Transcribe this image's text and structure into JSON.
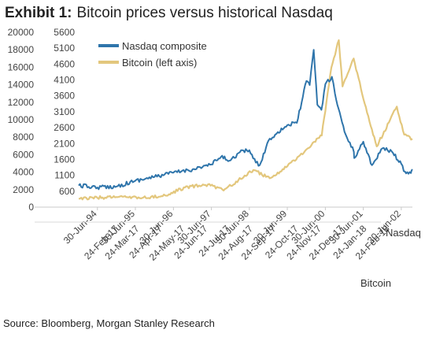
{
  "header": {
    "exhibit_label": "Exhibit 1:",
    "title": "Bitcoin prices versus historical Nasdaq"
  },
  "footer": {
    "source": "Source: Bloomberg, Morgan Stanley Research"
  },
  "chart_data": {
    "type": "line",
    "title": "Bitcoin prices versus historical Nasdaq",
    "grid": false,
    "legend_position": "top-center",
    "left_axis": {
      "ticks": [
        0,
        2000,
        4000,
        6000,
        8000,
        10000,
        12000,
        14000,
        16000,
        18000,
        20000
      ],
      "range": [
        0,
        20000
      ]
    },
    "right_axis": {
      "ticks": [
        600,
        1100,
        1600,
        2100,
        2600,
        3100,
        3600,
        4100,
        4600,
        5100,
        5600
      ],
      "range": [
        100,
        5600
      ]
    },
    "x_nasdaq": {
      "name": "Nasdaq",
      "ticks": [
        "30-Jun-94",
        "30-Jun-95",
        "30-Jun-96",
        "30-Jun-97",
        "30-Jun-98",
        "30-Jun-99",
        "30-Jun-00",
        "30-Jun-01",
        "30-Jun-02"
      ],
      "range": [
        "1994-01-01",
        "2002-10-15"
      ]
    },
    "x_bitcoin": {
      "name": "Bitcoin",
      "ticks": [
        "24-Feb-17",
        "24-Mar-17",
        "24-Apr-17",
        "24-May-17",
        "24-Jun-17",
        "24-Jul-17",
        "24-Aug-17",
        "24-Sep-17",
        "24-Oct-17",
        "24-Nov-17",
        "24-Dec-17",
        "24-Jan-18",
        "24-Feb-18"
      ],
      "range": [
        "2017-01-01",
        "2018-03-26"
      ]
    },
    "series": [
      {
        "name": "Nasdaq composite",
        "axis": "right",
        "color": "#2f75ab",
        "x": [
          "1994-01-01",
          "1994-06-30",
          "1994-12-31",
          "1995-06-30",
          "1995-12-31",
          "1996-06-30",
          "1996-12-31",
          "1997-06-30",
          "1997-09-30",
          "1997-12-31",
          "1998-03-31",
          "1998-06-30",
          "1998-08-31",
          "1998-10-08",
          "1998-12-31",
          "1999-03-31",
          "1999-06-30",
          "1999-09-30",
          "1999-12-31",
          "2000-01-31",
          "2000-03-10",
          "2000-04-14",
          "2000-05-23",
          "2000-06-30",
          "2000-09-01",
          "2000-09-30",
          "2000-12-31",
          "2001-03-31",
          "2001-04-04",
          "2001-06-30",
          "2001-09-21",
          "2001-12-31",
          "2002-03-31",
          "2002-06-30",
          "2002-07-24",
          "2002-09-30",
          "2002-10-15"
        ],
        "values": [
          780,
          720,
          750,
          930,
          1050,
          1185,
          1290,
          1440,
          1680,
          1570,
          1830,
          1890,
          1500,
          1420,
          2190,
          2460,
          2680,
          2750,
          4070,
          3940,
          5050,
          3320,
          3160,
          3970,
          4200,
          3670,
          2470,
          1840,
          1640,
          2160,
          1420,
          1950,
          1850,
          1460,
          1230,
          1170,
          1290
        ]
      },
      {
        "name": "Bitcoin (left axis)",
        "axis": "left",
        "color": "#e3c77d",
        "x": [
          "2017-01-01",
          "2017-02-24",
          "2017-03-24",
          "2017-04-24",
          "2017-05-24",
          "2017-06-24",
          "2017-07-15",
          "2017-08-24",
          "2017-09-15",
          "2017-09-24",
          "2017-10-24",
          "2017-11-24",
          "2017-12-07",
          "2017-12-17",
          "2017-12-22",
          "2018-01-06",
          "2018-01-24",
          "2018-02-06",
          "2018-02-24",
          "2018-03-05",
          "2018-03-15",
          "2018-03-26"
        ],
        "values": [
          970,
          1180,
          1040,
          1250,
          2250,
          2600,
          1900,
          4250,
          3300,
          3700,
          5800,
          8200,
          16000,
          19100,
          13800,
          17000,
          10800,
          6950,
          10000,
          11500,
          8300,
          7800
        ]
      }
    ]
  }
}
